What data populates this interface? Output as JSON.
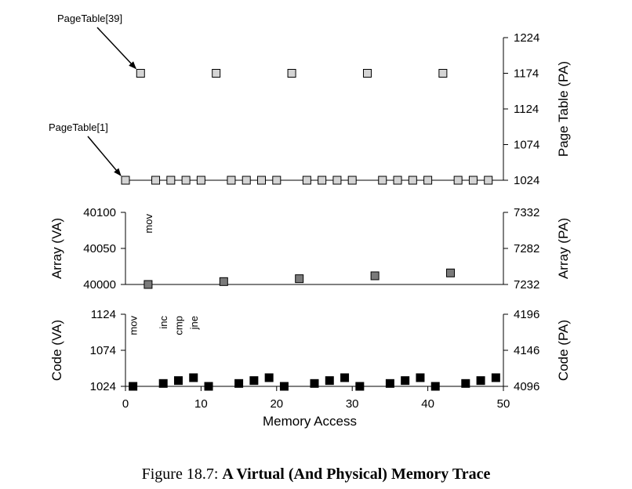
{
  "caption": {
    "prefix": "Figure 18.7:",
    "title": "A Virtual (And Physical) Memory Trace"
  },
  "chart_data": [
    {
      "type": "scatter",
      "name": "pagetable",
      "xlim": [
        0,
        50
      ],
      "ylim": [
        1024,
        1224
      ],
      "left_axis": null,
      "right_axis": {
        "label": "Page Table (PA)",
        "ticks": [
          1024,
          1074,
          1124,
          1174,
          1224
        ]
      },
      "marker_color": "#d4d4d4",
      "annotations": [
        {
          "text": "PageTable[39]",
          "x": 2,
          "y": 1174
        },
        {
          "text": "PageTable[1]",
          "x": 0,
          "y": 1024
        }
      ],
      "points": [
        {
          "x": 0,
          "y": 1024
        },
        {
          "x": 2,
          "y": 1174
        },
        {
          "x": 4,
          "y": 1024
        },
        {
          "x": 6,
          "y": 1024
        },
        {
          "x": 8,
          "y": 1024
        },
        {
          "x": 10,
          "y": 1024
        },
        {
          "x": 12,
          "y": 1174
        },
        {
          "x": 14,
          "y": 1024
        },
        {
          "x": 16,
          "y": 1024
        },
        {
          "x": 18,
          "y": 1024
        },
        {
          "x": 20,
          "y": 1024
        },
        {
          "x": 22,
          "y": 1174
        },
        {
          "x": 24,
          "y": 1024
        },
        {
          "x": 26,
          "y": 1024
        },
        {
          "x": 28,
          "y": 1024
        },
        {
          "x": 30,
          "y": 1024
        },
        {
          "x": 32,
          "y": 1174
        },
        {
          "x": 34,
          "y": 1024
        },
        {
          "x": 36,
          "y": 1024
        },
        {
          "x": 38,
          "y": 1024
        },
        {
          "x": 40,
          "y": 1024
        },
        {
          "x": 42,
          "y": 1174
        },
        {
          "x": 44,
          "y": 1024
        },
        {
          "x": 46,
          "y": 1024
        },
        {
          "x": 48,
          "y": 1024
        }
      ]
    },
    {
      "type": "scatter",
      "name": "array",
      "xlim": [
        0,
        50
      ],
      "ylim": [
        40000,
        40100
      ],
      "left_axis": {
        "label": "Array (VA)",
        "ticks": [
          40000,
          40050,
          40100
        ]
      },
      "right_axis": {
        "label": "Array (PA)",
        "ticks": [
          7232,
          7282,
          7332
        ]
      },
      "marker_color": "#7a7a7a",
      "instructions": [
        {
          "text": "mov",
          "x": 3
        }
      ],
      "points": [
        {
          "x": 3,
          "y": 40000
        },
        {
          "x": 13,
          "y": 40004
        },
        {
          "x": 23,
          "y": 40008
        },
        {
          "x": 33,
          "y": 40012
        },
        {
          "x": 43,
          "y": 40016
        }
      ]
    },
    {
      "type": "scatter",
      "name": "code",
      "xlim": [
        0,
        50
      ],
      "ylim": [
        1024,
        1124
      ],
      "left_axis": {
        "label": "Code (VA)",
        "ticks": [
          1024,
          1074,
          1124
        ]
      },
      "right_axis": {
        "label": "Code (PA)",
        "ticks": [
          4096,
          4146,
          4196
        ]
      },
      "marker_color": "#000000",
      "instructions": [
        {
          "text": "mov",
          "x": 1
        },
        {
          "text": "inc",
          "x": 5
        },
        {
          "text": "cmp",
          "x": 7
        },
        {
          "text": "jne",
          "x": 9
        }
      ],
      "x_axis": {
        "label": "Memory Access",
        "ticks": [
          0,
          10,
          20,
          30,
          40,
          50
        ]
      },
      "points": [
        {
          "x": 1,
          "y": 1024
        },
        {
          "x": 5,
          "y": 1028
        },
        {
          "x": 7,
          "y": 1032
        },
        {
          "x": 9,
          "y": 1036
        },
        {
          "x": 11,
          "y": 1024
        },
        {
          "x": 15,
          "y": 1028
        },
        {
          "x": 17,
          "y": 1032
        },
        {
          "x": 19,
          "y": 1036
        },
        {
          "x": 21,
          "y": 1024
        },
        {
          "x": 25,
          "y": 1028
        },
        {
          "x": 27,
          "y": 1032
        },
        {
          "x": 29,
          "y": 1036
        },
        {
          "x": 31,
          "y": 1024
        },
        {
          "x": 35,
          "y": 1028
        },
        {
          "x": 37,
          "y": 1032
        },
        {
          "x": 39,
          "y": 1036
        },
        {
          "x": 41,
          "y": 1024
        },
        {
          "x": 45,
          "y": 1028
        },
        {
          "x": 47,
          "y": 1032
        },
        {
          "x": 49,
          "y": 1036
        }
      ]
    }
  ]
}
